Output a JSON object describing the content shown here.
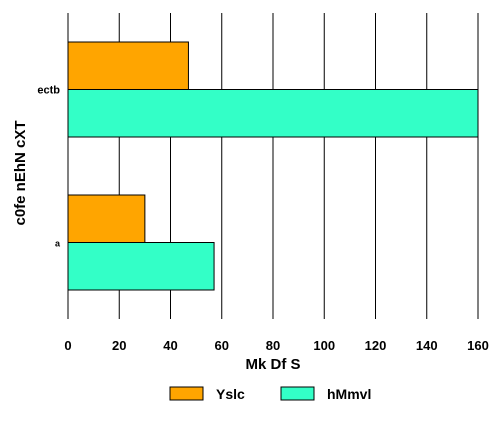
{
  "chart_data": {
    "type": "bar",
    "orientation": "horizontal",
    "categories": [
      "ectb",
      "a"
    ],
    "series": [
      {
        "name": "Yslc",
        "values": [
          47,
          30
        ],
        "color": "#FFA500"
      },
      {
        "name": "hMmvl",
        "values": [
          160,
          57
        ],
        "color": "#33FFC7"
      }
    ],
    "xlabel": "Mk Df S",
    "ylabel": "c0fe nEhN cXT",
    "xlim": [
      0,
      160
    ],
    "xticks": [
      0,
      20,
      40,
      60,
      80,
      100,
      120,
      140,
      160
    ],
    "grid": "vertical",
    "legend_position": "bottom"
  }
}
